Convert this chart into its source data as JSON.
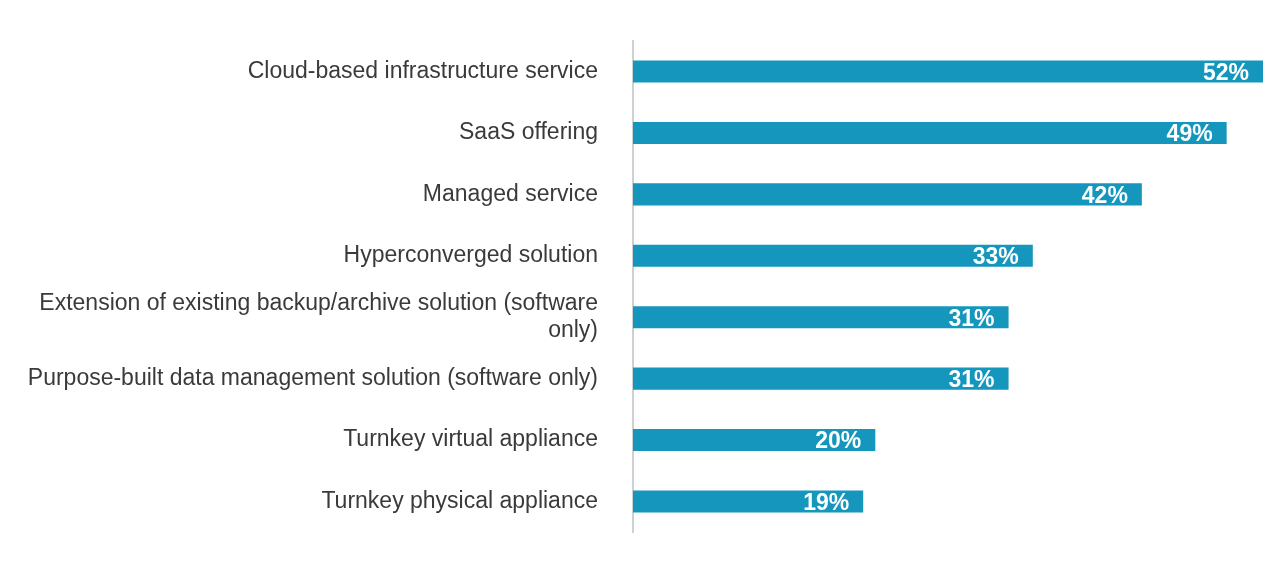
{
  "chart_data": {
    "type": "bar",
    "orientation": "horizontal",
    "categories": [
      "Cloud-based infrastructure service",
      "SaaS offering",
      "Managed service",
      "Hyperconverged solution",
      "Extension of existing backup/archive solution (software only)",
      "Purpose-built data management solution (software only)",
      "Turnkey virtual appliance",
      "Turnkey physical appliance"
    ],
    "values": [
      52,
      49,
      42,
      33,
      31,
      31,
      20,
      19
    ],
    "color": "#1597bd",
    "data_labels": true,
    "value_labels": [
      "52%",
      "49%",
      "42%",
      "33%",
      "31%",
      "31%",
      "20%",
      "19%"
    ],
    "grid": false,
    "legend": false
  }
}
